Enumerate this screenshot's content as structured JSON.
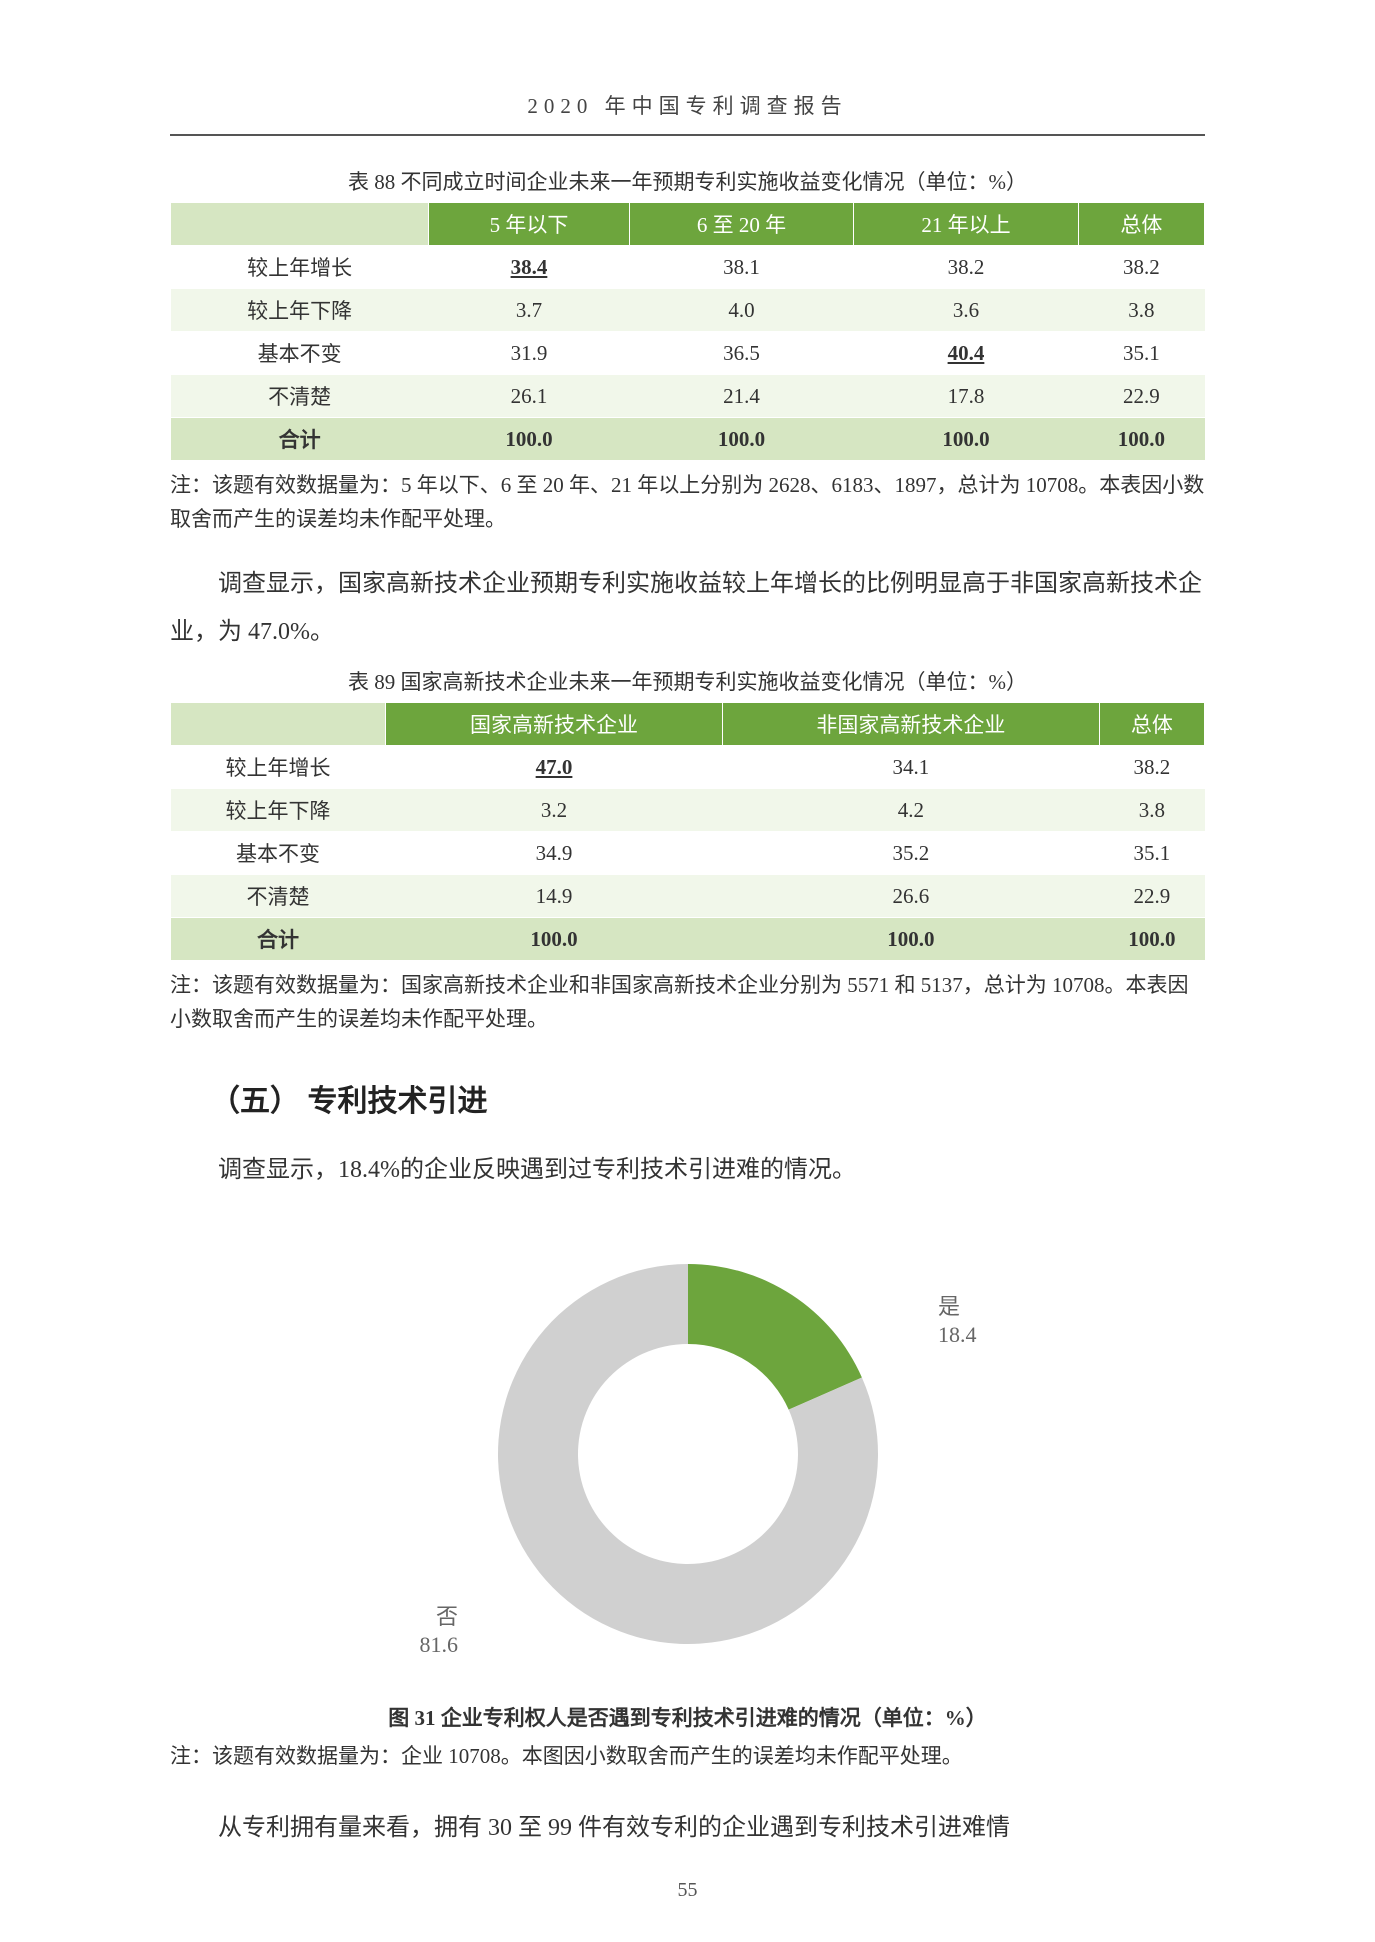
{
  "header": {
    "title": "2020 年中国专利调查报告"
  },
  "table88": {
    "caption": "表 88  不同成立时间企业未来一年预期专利实施收益变化情况（单位：%）",
    "columns": [
      "5 年以下",
      "6 至 20 年",
      "21 年以上",
      "总体"
    ],
    "rows": [
      {
        "label": "较上年增长",
        "values": [
          "38.4",
          "38.1",
          "38.2",
          "38.2"
        ],
        "underline_idx": 0
      },
      {
        "label": "较上年下降",
        "values": [
          "3.7",
          "4.0",
          "3.6",
          "3.8"
        ],
        "underline_idx": -1
      },
      {
        "label": "基本不变",
        "values": [
          "31.9",
          "36.5",
          "40.4",
          "35.1"
        ],
        "underline_idx": 2
      },
      {
        "label": "不清楚",
        "values": [
          "26.1",
          "21.4",
          "17.8",
          "22.9"
        ],
        "underline_idx": -1
      }
    ],
    "total": {
      "label": "合计",
      "values": [
        "100.0",
        "100.0",
        "100.0",
        "100.0"
      ]
    },
    "note": "注：该题有效数据量为：5 年以下、6 至 20 年、21 年以上分别为 2628、6183、1897，总计为 10708。本表因小数取舍而产生的误差均未作配平处理。",
    "header_bg": "#6da53d",
    "header_fg": "#ffffff",
    "alt_row_bg": "#f1f7ea",
    "total_bg": "#d6e6c2"
  },
  "para1": "调查显示，国家高新技术企业预期专利实施收益较上年增长的比例明显高于非国家高新技术企业，为 47.0%。",
  "table89": {
    "caption": "表 89  国家高新技术企业未来一年预期专利实施收益变化情况（单位：%）",
    "columns": [
      "国家高新技术企业",
      "非国家高新技术企业",
      "总体"
    ],
    "rows": [
      {
        "label": "较上年增长",
        "values": [
          "47.0",
          "34.1",
          "38.2"
        ],
        "underline_idx": 0
      },
      {
        "label": "较上年下降",
        "values": [
          "3.2",
          "4.2",
          "3.8"
        ],
        "underline_idx": -1
      },
      {
        "label": "基本不变",
        "values": [
          "34.9",
          "35.2",
          "35.1"
        ],
        "underline_idx": -1
      },
      {
        "label": "不清楚",
        "values": [
          "14.9",
          "26.6",
          "22.9"
        ],
        "underline_idx": -1
      }
    ],
    "total": {
      "label": "合计",
      "values": [
        "100.0",
        "100.0",
        "100.0"
      ]
    },
    "note": "注：该题有效数据量为：国家高新技术企业和非国家高新技术企业分别为 5571 和 5137，总计为 10708。本表因小数取舍而产生的误差均未作配平处理。"
  },
  "section5": {
    "title": "（五） 专利技术引进"
  },
  "para2": "调查显示，18.4%的企业反映遇到过专利技术引进难的情况。",
  "fig31": {
    "type": "donut",
    "caption": "图 31  企业专利权人是否遇到专利技术引进难的情况（单位：%）",
    "note": "注：该题有效数据量为：企业 10708。本图因小数取舍而产生的误差均未作配平处理。",
    "slices": [
      {
        "label": "是",
        "value": 18.4,
        "color": "#6da53d"
      },
      {
        "label": "否",
        "value": 81.6,
        "color": "#d0d0d0"
      }
    ],
    "start_angle_deg": -90,
    "outer_radius": 190,
    "inner_radius": 110,
    "background_color": "#ffffff",
    "label_fontsize": 22,
    "label_color": "#666666"
  },
  "para3": "从专利拥有量来看，拥有 30 至 99 件有效专利的企业遇到专利技术引进难情",
  "page_number": "55"
}
